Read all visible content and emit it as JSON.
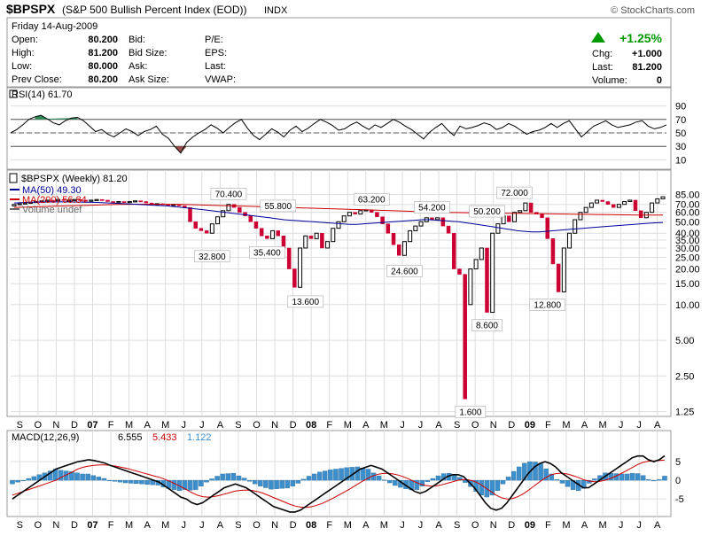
{
  "header": {
    "symbol": "$BPSPX",
    "name": "(S&P 500 Bullish Percent Index (EOD))",
    "exchange": "INDX",
    "copyright": "© StockCharts.com"
  },
  "quote": {
    "date": "Friday 14-Aug-2009",
    "rows": [
      {
        "label": "Open:",
        "value": "80.200",
        "label2": "Bid:",
        "label3": "P/E:"
      },
      {
        "label": "High:",
        "value": "81.200",
        "label2": "Bid Size:",
        "label3": "EPS:"
      },
      {
        "label": "Low:",
        "value": "80.000",
        "label2": "Ask:",
        "label3": "Last:"
      },
      {
        "label": "Prev Close:",
        "value": "80.200",
        "label2": "Ask Size:",
        "label3": "VWAP:"
      }
    ],
    "change_pct": "+1.25%",
    "chg_label": "Chg:",
    "chg_value": "+1.000",
    "last_label": "Last:",
    "last_value": "81.200",
    "volume_label": "Volume:",
    "volume_value": "0"
  },
  "colors": {
    "up": "#000000",
    "down": "#cc0033",
    "ma50": "#000099",
    "ma200": "#cc0000",
    "macd_hist": "#3d8fcc",
    "macd_signal": "#cc0000",
    "rsi_fill": "#8b3a3a",
    "grid": "#dddddd"
  },
  "chart_data": [
    {
      "type": "line",
      "title": "RSI(14) 61.70",
      "ylim": [
        0,
        100
      ],
      "yticks": [
        "90",
        "70",
        "50",
        "30",
        "10"
      ],
      "overbought": 70,
      "oversold": 30,
      "values": [
        50,
        55,
        62,
        70,
        74,
        76,
        71,
        65,
        62,
        68,
        72,
        73,
        68,
        60,
        52,
        55,
        48,
        44,
        50,
        56,
        52,
        46,
        52,
        55,
        60,
        48,
        42,
        30,
        20,
        36,
        44,
        50,
        55,
        62,
        57,
        50,
        58,
        65,
        70,
        57,
        46,
        40,
        48,
        56,
        51,
        44,
        54,
        60,
        52,
        57,
        64,
        70,
        66,
        61,
        54,
        56,
        62,
        66,
        60,
        55,
        62,
        58,
        64,
        70,
        66,
        60,
        55,
        48,
        41,
        51,
        58,
        64,
        54,
        46,
        60,
        56,
        58,
        61,
        65,
        62,
        55,
        58,
        64,
        60,
        54,
        48,
        52,
        54,
        58,
        64,
        58,
        64,
        68,
        56,
        44,
        52,
        60,
        64,
        68,
        62,
        58,
        60,
        62,
        66,
        68,
        60,
        56,
        58,
        62
      ]
    },
    {
      "type": "candlestick",
      "title": "$BPSPX (Weekly) 81.20",
      "legend": [
        {
          "label": "MA(50) 49.30",
          "color": "#000099"
        },
        {
          "label": "MA(200) 56.84",
          "color": "#cc0000"
        },
        {
          "label": "Volume undef",
          "color": "#666666"
        }
      ],
      "scale": "log",
      "ylim": [
        1.2,
        100
      ],
      "yticks": [
        "85.00",
        "70.00",
        "60.00",
        "50.00",
        "40.00",
        "35.00",
        "30.00",
        "25.00",
        "20.00",
        "15.00",
        "10.00",
        "5.00",
        "2.50",
        "1.25"
      ],
      "x_labels": [
        "S",
        "O",
        "N",
        "D",
        "07",
        "F",
        "M",
        "A",
        "M",
        "J",
        "J",
        "A",
        "S",
        "O",
        "N",
        "D",
        "08",
        "F",
        "M",
        "A",
        "M",
        "J",
        "J",
        "A",
        "S",
        "O",
        "N",
        "D",
        "09",
        "F",
        "M",
        "A",
        "M",
        "J",
        "J",
        "A"
      ],
      "annotations": [
        {
          "text": "70.400",
          "x": 39,
          "y": 70.4
        },
        {
          "text": "55.800",
          "x": 48,
          "y": 55.8
        },
        {
          "text": "32.800",
          "x": 36,
          "y": 32.8
        },
        {
          "text": "35.400",
          "x": 46,
          "y": 35.4
        },
        {
          "text": "13.600",
          "x": 53,
          "y": 13.6
        },
        {
          "text": "63.200",
          "x": 65,
          "y": 63.2
        },
        {
          "text": "24.600",
          "x": 71,
          "y": 24.6
        },
        {
          "text": "54.200",
          "x": 76,
          "y": 54.2
        },
        {
          "text": "50.200",
          "x": 86,
          "y": 50.2
        },
        {
          "text": "72.000",
          "x": 91,
          "y": 72.0
        },
        {
          "text": "1.600",
          "x": 83,
          "y": 1.6
        },
        {
          "text": "8.600",
          "x": 86,
          "y": 8.6
        },
        {
          "text": "12.800",
          "x": 97,
          "y": 12.8
        }
      ],
      "candles": [
        {
          "o": 68,
          "c": 70
        },
        {
          "o": 70,
          "c": 71
        },
        {
          "o": 71,
          "c": 72
        },
        {
          "o": 72,
          "c": 73
        },
        {
          "o": 73,
          "c": 74
        },
        {
          "o": 74,
          "c": 75
        },
        {
          "o": 75,
          "c": 76
        },
        {
          "o": 76,
          "c": 75
        },
        {
          "o": 75,
          "c": 77
        },
        {
          "o": 77,
          "c": 76
        },
        {
          "o": 76,
          "c": 76
        },
        {
          "o": 76,
          "c": 77
        },
        {
          "o": 77,
          "c": 76
        },
        {
          "o": 76,
          "c": 75
        },
        {
          "o": 75,
          "c": 76
        },
        {
          "o": 76,
          "c": 77
        },
        {
          "o": 77,
          "c": 76
        },
        {
          "o": 76,
          "c": 74
        },
        {
          "o": 74,
          "c": 73
        },
        {
          "o": 73,
          "c": 74
        },
        {
          "o": 74,
          "c": 73
        },
        {
          "o": 73,
          "c": 74
        },
        {
          "o": 74,
          "c": 75
        },
        {
          "o": 75,
          "c": 74
        },
        {
          "o": 74,
          "c": 72
        },
        {
          "o": 72,
          "c": 70
        },
        {
          "o": 70,
          "c": 71
        },
        {
          "o": 71,
          "c": 70
        },
        {
          "o": 70,
          "c": 69
        },
        {
          "o": 69,
          "c": 70
        },
        {
          "o": 70,
          "c": 68
        },
        {
          "o": 68,
          "c": 66
        },
        {
          "o": 66,
          "c": 50
        },
        {
          "o": 50,
          "c": 44
        },
        {
          "o": 44,
          "c": 42
        },
        {
          "o": 42,
          "c": 40
        },
        {
          "o": 40,
          "c": 48
        },
        {
          "o": 48,
          "c": 55
        },
        {
          "o": 55,
          "c": 62
        },
        {
          "o": 62,
          "c": 70
        },
        {
          "o": 70,
          "c": 66
        },
        {
          "o": 66,
          "c": 60
        },
        {
          "o": 60,
          "c": 56
        },
        {
          "o": 56,
          "c": 50
        },
        {
          "o": 50,
          "c": 44
        },
        {
          "o": 44,
          "c": 38
        },
        {
          "o": 38,
          "c": 36
        },
        {
          "o": 36,
          "c": 42
        },
        {
          "o": 42,
          "c": 38
        },
        {
          "o": 38,
          "c": 30
        },
        {
          "o": 30,
          "c": 20
        },
        {
          "o": 20,
          "c": 14
        },
        {
          "o": 14,
          "c": 30
        },
        {
          "o": 30,
          "c": 38
        },
        {
          "o": 38,
          "c": 36
        },
        {
          "o": 36,
          "c": 40
        },
        {
          "o": 40,
          "c": 30
        },
        {
          "o": 30,
          "c": 34
        },
        {
          "o": 34,
          "c": 44
        },
        {
          "o": 44,
          "c": 50
        },
        {
          "o": 50,
          "c": 56
        },
        {
          "o": 56,
          "c": 60
        },
        {
          "o": 60,
          "c": 58
        },
        {
          "o": 58,
          "c": 62
        },
        {
          "o": 62,
          "c": 63
        },
        {
          "o": 63,
          "c": 60
        },
        {
          "o": 60,
          "c": 55
        },
        {
          "o": 55,
          "c": 48
        },
        {
          "o": 48,
          "c": 40
        },
        {
          "o": 40,
          "c": 32
        },
        {
          "o": 32,
          "c": 26
        },
        {
          "o": 26,
          "c": 34
        },
        {
          "o": 34,
          "c": 42
        },
        {
          "o": 42,
          "c": 46
        },
        {
          "o": 46,
          "c": 50
        },
        {
          "o": 50,
          "c": 54
        },
        {
          "o": 54,
          "c": 52
        },
        {
          "o": 52,
          "c": 54
        },
        {
          "o": 54,
          "c": 46
        },
        {
          "o": 46,
          "c": 40
        },
        {
          "o": 40,
          "c": 20
        },
        {
          "o": 20,
          "c": 18
        },
        {
          "o": 18,
          "c": 1.6
        },
        {
          "o": 10,
          "c": 20
        },
        {
          "o": 20,
          "c": 24
        },
        {
          "o": 24,
          "c": 30
        },
        {
          "o": 30,
          "c": 8.6
        },
        {
          "o": 8.6,
          "c": 40
        },
        {
          "o": 40,
          "c": 48
        },
        {
          "o": 48,
          "c": 56
        },
        {
          "o": 56,
          "c": 50
        },
        {
          "o": 50,
          "c": 60
        },
        {
          "o": 60,
          "c": 62
        },
        {
          "o": 62,
          "c": 72
        },
        {
          "o": 72,
          "c": 60
        },
        {
          "o": 60,
          "c": 58
        },
        {
          "o": 58,
          "c": 54
        },
        {
          "o": 54,
          "c": 36
        },
        {
          "o": 36,
          "c": 22
        },
        {
          "o": 22,
          "c": 12.8
        },
        {
          "o": 12.8,
          "c": 30
        },
        {
          "o": 30,
          "c": 40
        },
        {
          "o": 40,
          "c": 52
        },
        {
          "o": 52,
          "c": 60
        },
        {
          "o": 60,
          "c": 66
        },
        {
          "o": 66,
          "c": 72
        },
        {
          "o": 72,
          "c": 76
        },
        {
          "o": 76,
          "c": 74
        },
        {
          "o": 74,
          "c": 70
        },
        {
          "o": 70,
          "c": 66
        },
        {
          "o": 66,
          "c": 70
        },
        {
          "o": 70,
          "c": 74
        },
        {
          "o": 74,
          "c": 76
        },
        {
          "o": 76,
          "c": 62
        },
        {
          "o": 62,
          "c": 54
        },
        {
          "o": 54,
          "c": 60
        },
        {
          "o": 60,
          "c": 72
        },
        {
          "o": 72,
          "c": 78
        },
        {
          "o": 78,
          "c": 81.2
        }
      ],
      "ma50": [
        72,
        72.5,
        73,
        73,
        73.2,
        73.4,
        73.5,
        73.5,
        73.4,
        73.2,
        73,
        72.8,
        72.5,
        72,
        71.5,
        71,
        70.5,
        70,
        69.5,
        69,
        68.5,
        68,
        67,
        66,
        65,
        64,
        63,
        62,
        61,
        60,
        59,
        58,
        57,
        56,
        55,
        54,
        53,
        52,
        51.5,
        51,
        50.5,
        50,
        49.5,
        49,
        48.5,
        48,
        47.5,
        47.5,
        48,
        48.5,
        49,
        49.5,
        50,
        50.5,
        51,
        51.5,
        52,
        52,
        51.5,
        51,
        50.5,
        50,
        49,
        48,
        47,
        46,
        45,
        44,
        43,
        42,
        41.5,
        41,
        41,
        41.5,
        42,
        42.5,
        43,
        43.5,
        44,
        44.5,
        45,
        45.5,
        46,
        46.5,
        47,
        47.5,
        48,
        48.5,
        49,
        49.3
      ],
      "ma200": [
        66,
        66.5,
        67,
        67.5,
        68,
        68.5,
        69,
        69.5,
        70,
        70.2,
        70.3,
        70.3,
        70.2,
        70,
        69.5,
        69,
        68.5,
        68,
        67.5,
        67,
        66.5,
        66,
        65.5,
        65,
        64.5,
        64,
        63.5,
        63,
        62.5,
        62,
        61.5,
        61,
        60.5,
        60,
        59.8,
        59.6,
        59.4,
        59.2,
        59,
        58.8,
        58.6,
        58.4,
        58.2,
        58,
        57.8,
        57.6,
        57.4,
        57.2,
        57,
        56.9,
        56.84
      ]
    },
    {
      "type": "line",
      "title": "MACD(12,26,9)",
      "value_labels": [
        "6.555",
        "5.433",
        "1.122"
      ],
      "ylim": [
        -9,
        10
      ],
      "yticks": [
        "5",
        "0",
        "-5"
      ],
      "x_labels": [
        "S",
        "O",
        "N",
        "D",
        "07",
        "F",
        "M",
        "A",
        "M",
        "J",
        "J",
        "A",
        "S",
        "O",
        "N",
        "D",
        "08",
        "F",
        "M",
        "A",
        "M",
        "J",
        "J",
        "A",
        "S",
        "O",
        "N",
        "D",
        "09",
        "F",
        "M",
        "A",
        "M",
        "J",
        "J",
        "A"
      ],
      "macd": [
        -5,
        -4,
        -3,
        -2,
        -1,
        0,
        1,
        2,
        3,
        3.5,
        4,
        4.5,
        5,
        5.2,
        5.5,
        5.3,
        5,
        4.6,
        4,
        3.5,
        3,
        2.5,
        2,
        1.5,
        1,
        0.5,
        0,
        -0.5,
        -1.5,
        -2.5,
        -3.5,
        -4.5,
        -5,
        -6,
        -6.5,
        -6,
        -5,
        -4,
        -3,
        -2,
        -1.5,
        -1,
        -1.5,
        -2,
        -3,
        -4,
        -5,
        -6,
        -7,
        -7.5,
        -8,
        -8.5,
        -8.5,
        -8,
        -7,
        -6,
        -5,
        -4,
        -3,
        -2,
        -1,
        0,
        1,
        2,
        3,
        3.5,
        4,
        3.5,
        3,
        2,
        1,
        0,
        -1,
        -2,
        -3,
        -3.5,
        -3,
        -2,
        -1,
        0,
        1,
        1.5,
        1.5,
        1,
        -0.5,
        -2,
        -4,
        -6,
        -7.5,
        -8,
        -7.5,
        -6,
        -4,
        -2,
        0,
        2,
        3.5,
        4.5,
        5,
        4.5,
        3.5,
        2,
        1,
        0,
        -1,
        -2,
        -2,
        -1,
        0,
        1,
        2,
        3,
        4,
        5,
        6,
        6.5,
        6.5,
        5.5,
        5,
        5.5,
        6.555
      ],
      "signal": [
        -4,
        -3.5,
        -3,
        -2.5,
        -2,
        -1.5,
        -1,
        -0.5,
        0,
        0.8,
        1.5,
        2.2,
        3,
        3.5,
        3.8,
        4,
        4.1,
        4.1,
        4,
        3.8,
        3.5,
        3.2,
        2.8,
        2.4,
        2,
        1.6,
        1.2,
        0.8,
        0.3,
        -0.3,
        -1,
        -1.7,
        -2.5,
        -3.3,
        -4,
        -4.4,
        -4.5,
        -4.4,
        -4.1,
        -3.7,
        -3.3,
        -2.9,
        -2.7,
        -2.6,
        -2.7,
        -3,
        -3.4,
        -4,
        -4.6,
        -5.2,
        -5.8,
        -6.4,
        -6.9,
        -7.2,
        -7.3,
        -7.1,
        -6.7,
        -6.2,
        -5.5,
        -4.8,
        -4,
        -3.2,
        -2.4,
        -1.5,
        -0.6,
        0.2,
        1,
        1.5,
        1.8,
        1.9,
        1.7,
        1.4,
        0.9,
        0.3,
        -0.4,
        -1,
        -1.4,
        -1.6,
        -1.5,
        -1.2,
        -0.8,
        -0.4,
        0,
        0.2,
        0.1,
        -0.3,
        -1,
        -2,
        -3,
        -4,
        -4.7,
        -5,
        -4.9,
        -4.4,
        -3.6,
        -2.6,
        -1.5,
        -0.4,
        0.6,
        1.4,
        1.8,
        1.9,
        1.7,
        1.3,
        0.8,
        0.2,
        -0.2,
        -0.4,
        -0.3,
        0,
        0.5,
        1.1,
        1.8,
        2.6,
        3.4,
        4.2,
        4.8,
        5.1,
        5.2,
        5.3,
        5.433
      ],
      "hist": [
        -1,
        -0.5,
        0,
        0.5,
        1,
        1.5,
        2,
        2.5,
        3,
        2.7,
        2.5,
        2.3,
        2,
        1.7,
        1.7,
        1.3,
        0.9,
        0.5,
        0,
        -0.3,
        -0.5,
        -0.7,
        -0.8,
        -0.9,
        -1,
        -1.1,
        -1.2,
        -1.3,
        -1.8,
        -2.2,
        -2.5,
        -2.8,
        -2.5,
        -2.7,
        -2.5,
        -1.6,
        -0.5,
        0.4,
        1.1,
        1.7,
        1.8,
        1.9,
        1.2,
        0.6,
        -0.3,
        -1,
        -1.6,
        -2,
        -2.4,
        -2.3,
        -2.2,
        -2.1,
        -1.6,
        -0.8,
        0.3,
        1.1,
        1.7,
        2.2,
        2.5,
        2.8,
        3,
        3.2,
        3.4,
        3.5,
        3.6,
        3.3,
        3,
        2,
        1.2,
        0.1,
        -0.7,
        -1.4,
        -1.9,
        -2.3,
        -2.6,
        -2.5,
        -1.6,
        -0.4,
        0.5,
        1.2,
        1.8,
        1.9,
        1.5,
        0.8,
        -0.6,
        -1.7,
        -3,
        -4,
        -4.5,
        -4,
        -2.8,
        -1,
        0.9,
        2.4,
        3.6,
        4.6,
        5,
        4.9,
        4.4,
        3.1,
        1.7,
        0.2,
        -0.8,
        -1.7,
        -2.5,
        -2.8,
        -2.2,
        -0.8,
        0.4,
        1.3,
        2,
        1.9,
        1.8,
        1.7,
        1.7,
        1.9,
        1.8,
        1.3,
        0.2,
        -0.2,
        0.2,
        1.122
      ]
    }
  ]
}
